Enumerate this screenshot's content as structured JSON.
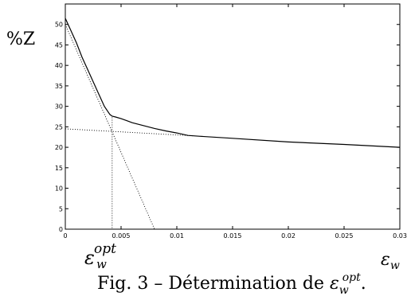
{
  "chart_data": {
    "type": "line",
    "title": "",
    "ylabel": "%Z",
    "xlabel": "ε_w",
    "xlim": [
      0,
      0.03
    ],
    "ylim": [
      0,
      55
    ],
    "grid": false,
    "x_ticks": [
      0,
      0.005,
      0.01,
      0.015,
      0.02,
      0.025,
      0.03
    ],
    "x_tick_labels": [
      "0",
      "0.005",
      "0.01",
      "0.015",
      "0.02",
      "0.025",
      "0.03"
    ],
    "y_ticks": [
      0,
      5,
      10,
      15,
      20,
      25,
      30,
      35,
      40,
      45,
      50
    ],
    "y_tick_labels": [
      "0",
      "5",
      "10",
      "15",
      "20",
      "25",
      "30",
      "35",
      "40",
      "45",
      "50"
    ],
    "series": [
      {
        "style": "solid",
        "x": [
          0,
          0.0005,
          0.001,
          0.0015,
          0.002,
          0.0025,
          0.003,
          0.0035,
          0.004,
          0.0042,
          0.0045,
          0.005,
          0.0055,
          0.006,
          0.007,
          0.008,
          0.009,
          0.01,
          0.011,
          0.012,
          0.015,
          0.02,
          0.025,
          0.03
        ],
        "y": [
          51.5,
          48.5,
          45.5,
          42.0,
          39.0,
          36.0,
          33.0,
          30.0,
          28.0,
          27.6,
          27.4,
          27.0,
          26.5,
          26.0,
          25.3,
          24.6,
          24.0,
          23.5,
          22.9,
          22.7,
          22.2,
          21.3,
          20.7,
          20.0
        ]
      },
      {
        "style": "dotted",
        "x": [
          0,
          0.008
        ],
        "y": [
          50,
          0
        ]
      },
      {
        "style": "dotted",
        "x": [
          0,
          0.0115
        ],
        "y": [
          24.5,
          22.8
        ]
      },
      {
        "style": "dotted",
        "x": [
          0.0042,
          0.0042
        ],
        "y": [
          27.3,
          0
        ]
      }
    ],
    "annotations": [
      {
        "text": "ε_w^opt",
        "x": 0.0042
      }
    ]
  },
  "caption": {
    "prefix": "Fig. 3 – Détermination de ",
    "symbol": "ε",
    "sub": "w",
    "sup": "opt",
    "suffix": "."
  },
  "labels": {
    "y_axis": "%Z",
    "x_axis_symbol": "ε",
    "x_axis_sub": "w",
    "opt_symbol": "ε",
    "opt_sub": "w",
    "opt_sup": "opt"
  }
}
